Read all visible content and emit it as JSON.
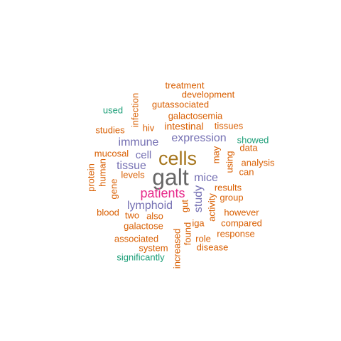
{
  "palette": {
    "orange": "#D95F02",
    "teal": "#1B9E77",
    "purple": "#7570B3",
    "magenta": "#E7298A",
    "olive": "#A6761D",
    "gray": "#666666"
  },
  "words": [
    {
      "text": "galt",
      "color": "gray"
    },
    {
      "text": "cells",
      "color": "olive"
    },
    {
      "text": "patients",
      "color": "magenta"
    },
    {
      "text": "expression",
      "color": "purple"
    },
    {
      "text": "immune",
      "color": "purple"
    },
    {
      "text": "lymphoid",
      "color": "purple"
    },
    {
      "text": "tissue",
      "color": "purple"
    },
    {
      "text": "mice",
      "color": "purple"
    },
    {
      "text": "cell",
      "color": "purple"
    },
    {
      "text": "study",
      "color": "purple"
    },
    {
      "text": "intestinal",
      "color": "orange"
    },
    {
      "text": "galactosemia",
      "color": "orange"
    },
    {
      "text": "gutassociated",
      "color": "orange"
    },
    {
      "text": "development",
      "color": "orange"
    },
    {
      "text": "treatment",
      "color": "orange"
    },
    {
      "text": "infection",
      "color": "orange"
    },
    {
      "text": "hiv",
      "color": "orange"
    },
    {
      "text": "tissues",
      "color": "orange"
    },
    {
      "text": "studies",
      "color": "orange"
    },
    {
      "text": "showed",
      "color": "teal"
    },
    {
      "text": "used",
      "color": "teal"
    },
    {
      "text": "mucosal",
      "color": "orange"
    },
    {
      "text": "data",
      "color": "orange"
    },
    {
      "text": "may",
      "color": "orange"
    },
    {
      "text": "using",
      "color": "orange"
    },
    {
      "text": "analysis",
      "color": "orange"
    },
    {
      "text": "can",
      "color": "orange"
    },
    {
      "text": "levels",
      "color": "orange"
    },
    {
      "text": "human",
      "color": "orange"
    },
    {
      "text": "protein",
      "color": "orange"
    },
    {
      "text": "gene",
      "color": "orange"
    },
    {
      "text": "results",
      "color": "orange"
    },
    {
      "text": "group",
      "color": "orange"
    },
    {
      "text": "blood",
      "color": "orange"
    },
    {
      "text": "two",
      "color": "orange"
    },
    {
      "text": "also",
      "color": "orange"
    },
    {
      "text": "gut",
      "color": "orange"
    },
    {
      "text": "activity",
      "color": "orange"
    },
    {
      "text": "however",
      "color": "orange"
    },
    {
      "text": "galactose",
      "color": "orange"
    },
    {
      "text": "iga",
      "color": "orange"
    },
    {
      "text": "compared",
      "color": "orange"
    },
    {
      "text": "associated",
      "color": "orange"
    },
    {
      "text": "found",
      "color": "orange"
    },
    {
      "text": "role",
      "color": "orange"
    },
    {
      "text": "response",
      "color": "orange"
    },
    {
      "text": "system",
      "color": "orange"
    },
    {
      "text": "disease",
      "color": "orange"
    },
    {
      "text": "increased",
      "color": "orange"
    },
    {
      "text": "significantly",
      "color": "teal"
    }
  ]
}
